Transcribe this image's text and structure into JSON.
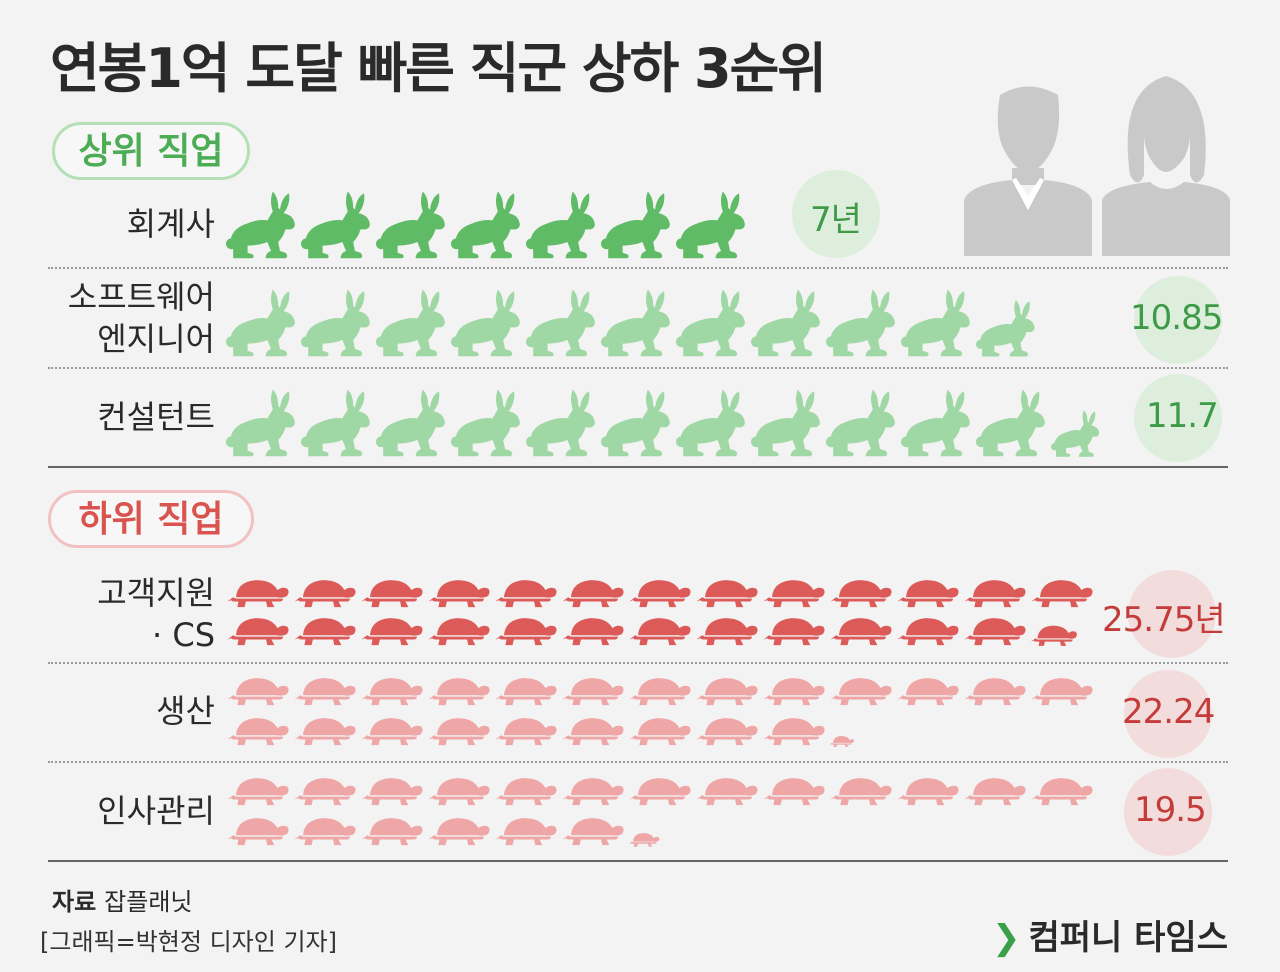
{
  "title": "연봉1억 도달 빠른 직군 상하 3순위",
  "sections": {
    "top_label": "상위 직업",
    "bottom_label": "하위 직업"
  },
  "colors": {
    "rabbit_dark": "#5fbb66",
    "rabbit_light": "#9fd8a4",
    "turtle_dark": "#dc5a58",
    "turtle_light": "#efa6a6",
    "green_text": "#3e9a47",
    "red_text": "#c43c3a"
  },
  "icons": [
    "rabbit-icon",
    "turtle-icon",
    "man-silhouette-icon",
    "woman-silhouette-icon"
  ],
  "chart_data": {
    "type": "pictogram",
    "unit": "년",
    "top": [
      {
        "category_lines": [
          "회계사"
        ],
        "value": 7,
        "value_label": "7년"
      },
      {
        "category_lines": [
          "소프트웨어",
          "엔지니어"
        ],
        "value": 10.85,
        "value_label": "10.85"
      },
      {
        "category_lines": [
          "컨설턴트"
        ],
        "value": 11.7,
        "value_label": "11.7"
      }
    ],
    "bottom": [
      {
        "category_lines": [
          "고객지원",
          "· CS"
        ],
        "value": 25.75,
        "value_label": "25.75년"
      },
      {
        "category_lines": [
          "생산"
        ],
        "value": 22.24,
        "value_label": "22.24"
      },
      {
        "category_lines": [
          "인사관리"
        ],
        "value": 19.5,
        "value_label": "19.5"
      }
    ]
  },
  "footer": {
    "source_label": "자료",
    "source_value": "잡플래닛",
    "credit": "[그래픽=박현정 디자인 기자]",
    "brand": "컴퍼니 타임스"
  }
}
